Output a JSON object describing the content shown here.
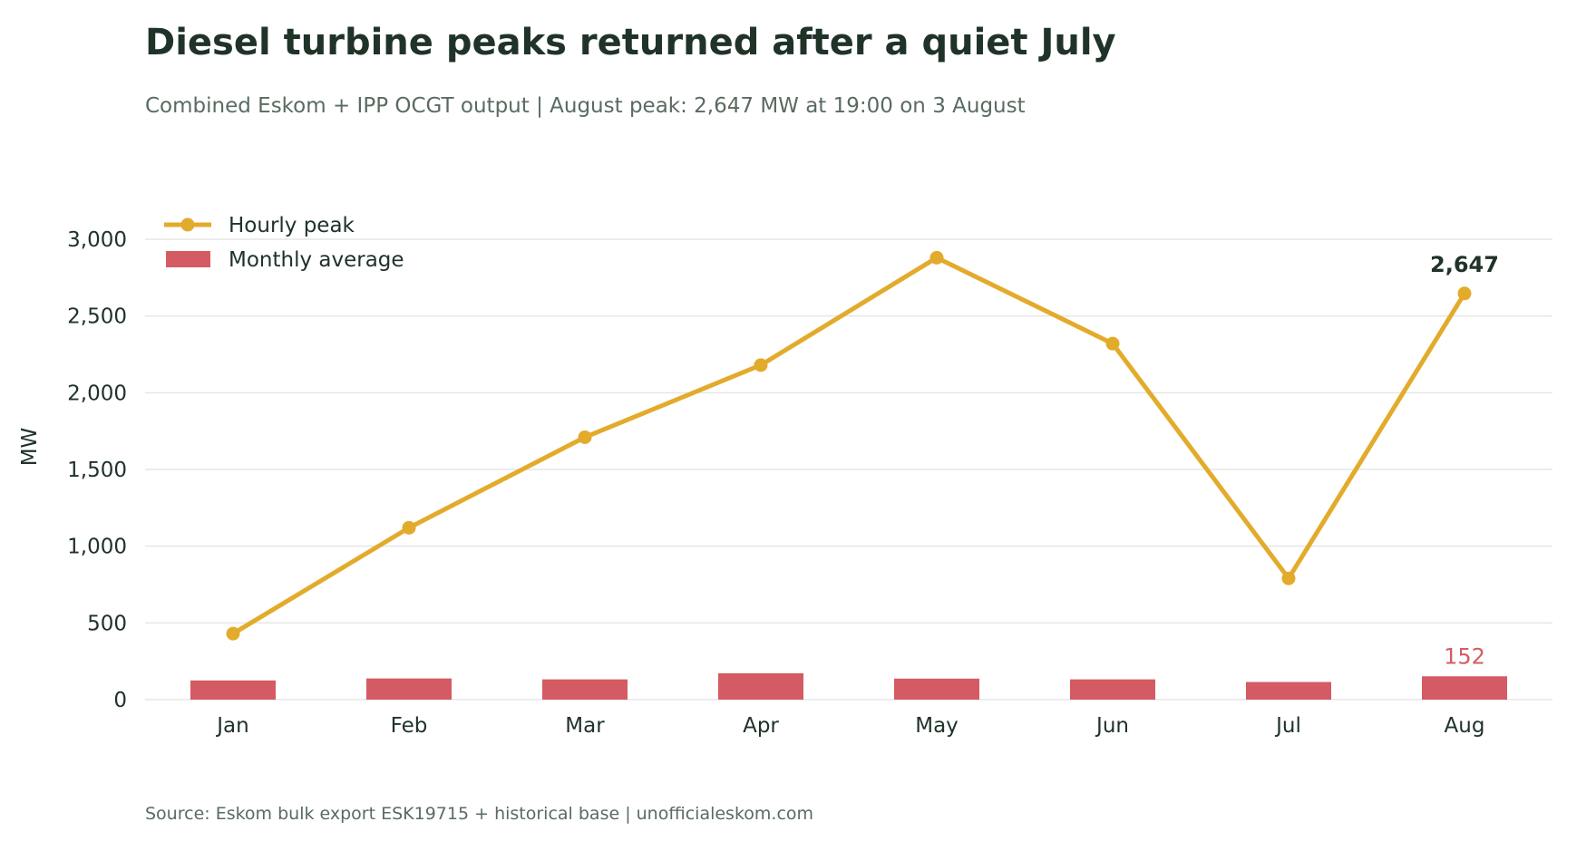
{
  "chart_data": {
    "type": "line",
    "title": "Diesel turbine peaks returned after a quiet July",
    "subtitle": "Combined Eskom + IPP OCGT output  |  August peak: 2,647 MW at 19:00 on 3 August",
    "source": "Source: Eskom bulk export ESK19715 + historical base  |  unofficialeskom.com",
    "ylabel": "MW",
    "xlabel": "",
    "ylim": [
      0,
      3000
    ],
    "yticks": [
      0,
      500,
      1000,
      1500,
      2000,
      2500,
      3000
    ],
    "ytick_labels": [
      "0",
      "500",
      "1,000",
      "1,500",
      "2,000",
      "2,500",
      "3,000"
    ],
    "categories": [
      "Jan",
      "Feb",
      "Mar",
      "Apr",
      "May",
      "Jun",
      "Jul",
      "Aug"
    ],
    "grid": true,
    "legend_position": "top-left",
    "series": [
      {
        "name": "Hourly peak",
        "kind": "line",
        "color": "#e3ab2b",
        "values": [
          430,
          1120,
          1710,
          2180,
          2880,
          2320,
          790,
          2647
        ]
      },
      {
        "name": "Monthly average",
        "kind": "bar",
        "color": "#d45b63",
        "values": [
          125,
          138,
          132,
          172,
          137,
          132,
          115,
          152
        ]
      }
    ],
    "annotations": [
      {
        "series": "Hourly peak",
        "category": "Aug",
        "text": "2,647"
      },
      {
        "series": "Monthly average",
        "category": "Aug",
        "text": "152"
      }
    ]
  }
}
